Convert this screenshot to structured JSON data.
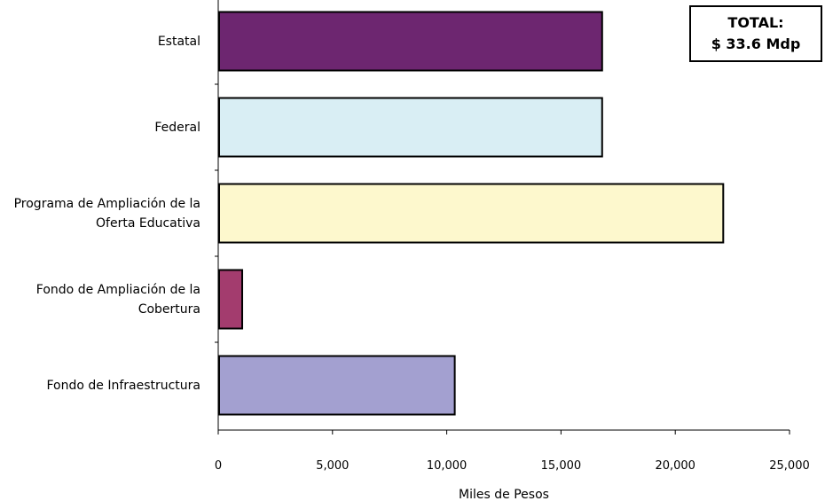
{
  "total_box": {
    "line1": "TOTAL:",
    "line2": "$ 33.6 Mdp"
  },
  "colors": {
    "estatal": "#6d2670",
    "federal": "#d9eef4",
    "programa": "#fdf8cd",
    "fondo_cobertura": "#a33c6e",
    "fondo_infra": "#a3a0d0",
    "border": "#000000"
  },
  "chart_data": {
    "type": "bar",
    "orientation": "horizontal",
    "title": "",
    "xlabel": "Miles de Pesos",
    "ylabel": "",
    "xlim": [
      0,
      25000
    ],
    "x_ticks": [
      0,
      5000,
      10000,
      15000,
      20000,
      25000
    ],
    "x_tick_labels": [
      "0",
      "5,000",
      "10,000",
      "15,000",
      "20,000",
      "25,000"
    ],
    "categories": [
      "Estatal",
      "Federal",
      "Programa de Ampliación de la Oferta Educativa",
      "Fondo de Ampliación de la Cobertura",
      "Fondo de Infraestructura"
    ],
    "category_lines": [
      [
        "Estatal"
      ],
      [
        "Federal"
      ],
      [
        "Programa de Ampliación de",
        "la Oferta Educativa"
      ],
      [
        "Fondo de Ampliación de la",
        "Cobertura"
      ],
      [
        "Fondo de Infraestructura"
      ]
    ],
    "values": [
      16800,
      16800,
      22100,
      1050,
      10350
    ],
    "grid": false,
    "legend": "none"
  }
}
